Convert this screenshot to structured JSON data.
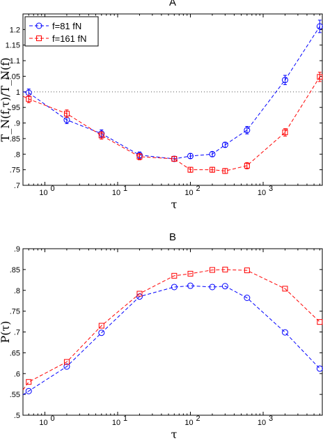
{
  "chart_data": [
    {
      "panel": "A",
      "type": "line",
      "title": "A",
      "xlabel": "τ",
      "ylabel": "T_N(f,τ)/T_N(f)",
      "xscale": "log",
      "xlim": [
        0.5,
        6500
      ],
      "ylim": [
        0.7,
        1.25
      ],
      "y_ticks": [
        0.7,
        0.75,
        0.8,
        0.85,
        0.9,
        0.95,
        1,
        1.05,
        1.1,
        1.15,
        1.2
      ],
      "x_ticks": [
        {
          "value": 1,
          "label": "10",
          "exp": "0"
        },
        {
          "value": 10,
          "label": "10",
          "exp": "1"
        },
        {
          "value": 100,
          "label": "10",
          "exp": "2"
        },
        {
          "value": 1000,
          "label": "10",
          "exp": "3"
        }
      ],
      "reference_line": {
        "y": 1,
        "style": "dotted"
      },
      "legend_position": "top-left",
      "grid": false,
      "series": [
        {
          "name": "f=81 fN",
          "color": "#0000ff",
          "marker": "circle",
          "x": [
            0.6,
            2,
            6,
            20,
            60,
            100,
            200,
            300,
            600,
            2000,
            6000
          ],
          "y": [
            0.997,
            0.91,
            0.866,
            0.797,
            0.785,
            0.794,
            0.8,
            0.83,
            0.877,
            1.038,
            1.21
          ],
          "yerr": [
            0.012,
            0.012,
            0.012,
            0.01,
            0.008,
            0.008,
            0.008,
            0.008,
            0.012,
            0.015,
            0.02
          ],
          "line_start": {
            "x": 0.5,
            "y": 1.0
          }
        },
        {
          "name": "f=161 fN",
          "color": "#ff0000",
          "marker": "square",
          "x": [
            0.6,
            2,
            6,
            20,
            60,
            100,
            200,
            300,
            600,
            2000,
            6000
          ],
          "y": [
            0.977,
            0.93,
            0.86,
            0.792,
            0.785,
            0.75,
            0.75,
            0.746,
            0.763,
            0.87,
            1.048
          ],
          "yerr": [
            0.012,
            0.012,
            0.012,
            0.01,
            0.008,
            0.008,
            0.008,
            0.008,
            0.01,
            0.012,
            0.015
          ],
          "line_start": {
            "x": 0.5,
            "y": 0.986
          }
        }
      ]
    },
    {
      "panel": "B",
      "type": "line",
      "title": "B",
      "xlabel": "τ",
      "ylabel": "P(τ)",
      "xscale": "log",
      "xlim": [
        0.5,
        6500
      ],
      "ylim": [
        0.5,
        0.9
      ],
      "y_ticks": [
        0.5,
        0.55,
        0.6,
        0.65,
        0.7,
        0.75,
        0.8,
        0.85,
        0.9
      ],
      "x_ticks": [
        {
          "value": 1,
          "label": "10",
          "exp": "0"
        },
        {
          "value": 10,
          "label": "10",
          "exp": "1"
        },
        {
          "value": 100,
          "label": "10",
          "exp": "2"
        },
        {
          "value": 1000,
          "label": "10",
          "exp": "3"
        }
      ],
      "grid": false,
      "series": [
        {
          "color": "#0000ff",
          "marker": "circle",
          "x": [
            0.6,
            2,
            6,
            20,
            60,
            100,
            200,
            300,
            600,
            2000,
            6000
          ],
          "y": [
            0.558,
            0.617,
            0.698,
            0.785,
            0.808,
            0.811,
            0.808,
            0.81,
            0.782,
            0.699,
            0.612
          ],
          "line_start": {
            "x": 0.5,
            "y": 0.549
          }
        },
        {
          "color": "#ff0000",
          "marker": "square",
          "x": [
            0.6,
            2,
            6,
            20,
            60,
            100,
            200,
            300,
            600,
            2000,
            6000
          ],
          "y": [
            0.58,
            0.628,
            0.715,
            0.792,
            0.835,
            0.84,
            0.849,
            0.85,
            0.848,
            0.804,
            0.724
          ],
          "line_start": {
            "x": 0.5,
            "y": 0.561
          }
        }
      ]
    }
  ]
}
